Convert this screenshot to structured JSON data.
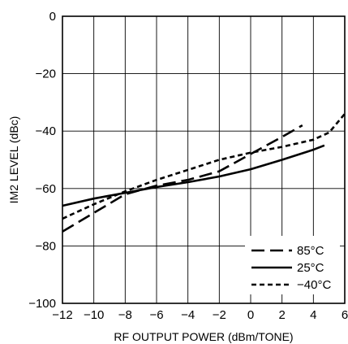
{
  "chart_data": {
    "type": "line",
    "title": "",
    "xlabel": "RF OUTPUT POWER (dBm/TONE)",
    "ylabel": "IM2 LEVEL (dBc)",
    "xlim": [
      -12,
      6
    ],
    "ylim": [
      -100,
      0
    ],
    "xticks": [
      -12,
      -10,
      -8,
      -6,
      -4,
      -2,
      0,
      2,
      4,
      6
    ],
    "yticks": [
      0,
      -20,
      -40,
      -60,
      -80,
      -100
    ],
    "xtick_labels": [
      "−12",
      "−10",
      "−8",
      "−6",
      "−4",
      "−2",
      "0",
      "2",
      "4",
      "6"
    ],
    "ytick_labels": [
      "0",
      "−20",
      "−40",
      "−60",
      "−80",
      "−100"
    ],
    "grid": true,
    "legend_position": "bottom-right",
    "series": [
      {
        "name": "85°C",
        "line_style": "long-dash",
        "x": [
          -12,
          -10,
          -8,
          -6,
          -4,
          -2,
          0,
          2,
          3.3
        ],
        "y": [
          -75,
          -68.5,
          -62,
          -59,
          -57,
          -54,
          -48,
          -42,
          -38
        ]
      },
      {
        "name": "25°C",
        "line_style": "solid",
        "x": [
          -12,
          -10,
          -8,
          -6,
          -4,
          -2,
          0,
          2,
          4,
          4.7
        ],
        "y": [
          -66,
          -63.5,
          -61.5,
          -59.5,
          -57.8,
          -55.8,
          -53.3,
          -50,
          -46.5,
          -45
        ]
      },
      {
        "name": "−40°C",
        "line_style": "short-dash",
        "x": [
          -12,
          -10,
          -8,
          -6,
          -4,
          -2,
          0,
          2,
          4,
          5,
          6
        ],
        "y": [
          -70.5,
          -65.5,
          -61,
          -57,
          -53.5,
          -50,
          -47.5,
          -45.5,
          -43,
          -40.5,
          -34
        ]
      }
    ]
  }
}
